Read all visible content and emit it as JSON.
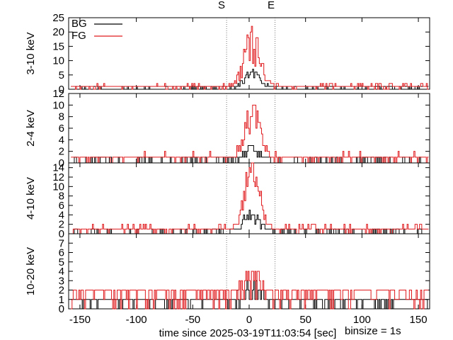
{
  "chart_data": {
    "type": "line",
    "title": "",
    "xlabel": "time since 2025-03-19T11:03:54 [sec]",
    "binsize_label": "binsize = 1s",
    "xlim": [
      -160,
      160
    ],
    "xticks": [
      -150,
      -100,
      -50,
      0,
      50,
      100,
      150
    ],
    "grid": false,
    "legend_placement": "top-left",
    "legend": [
      {
        "name": "BG",
        "color": "#000000"
      },
      {
        "name": "FG",
        "color": "#e0191c"
      }
    ],
    "markers": [
      {
        "label": "S",
        "x": -20
      },
      {
        "label": "E",
        "x": 23
      }
    ],
    "panels": [
      {
        "ylabel": "3-10 keV",
        "ylim": [
          0,
          25
        ],
        "yticks": [
          0,
          5,
          10,
          15,
          20,
          25
        ],
        "series": [
          {
            "name": "BG",
            "baseline": 0.6,
            "peak": 7,
            "noise": 1.5
          },
          {
            "name": "FG",
            "baseline": 1.2,
            "peak": 21,
            "noise": 2.2
          }
        ]
      },
      {
        "ylabel": "2-4 keV",
        "ylim": [
          0,
          12
        ],
        "yticks": [
          0,
          2,
          4,
          6,
          8,
          10,
          12
        ],
        "series": [
          {
            "name": "BG",
            "baseline": 0.3,
            "peak": 3,
            "noise": 1
          },
          {
            "name": "FG",
            "baseline": 0.6,
            "peak": 11,
            "noise": 1.6
          }
        ]
      },
      {
        "ylabel": "4-10 keV",
        "ylim": [
          0,
          15
        ],
        "yticks": [
          0,
          2,
          4,
          6,
          8,
          10,
          12,
          14
        ],
        "series": [
          {
            "name": "BG",
            "baseline": 0.4,
            "peak": 5,
            "noise": 1.2
          },
          {
            "name": "FG",
            "baseline": 0.8,
            "peak": 15,
            "noise": 2
          }
        ]
      },
      {
        "ylabel": "10-20 keV",
        "ylim": [
          0,
          8
        ],
        "yticks": [
          0,
          1,
          2,
          3,
          4,
          5,
          6,
          7
        ],
        "series": [
          {
            "name": "BG",
            "baseline": 1.2,
            "peak": 1.8,
            "noise": 1.5
          },
          {
            "name": "FG",
            "baseline": 1.8,
            "peak": 2.5,
            "noise": 2.2
          }
        ]
      }
    ]
  }
}
